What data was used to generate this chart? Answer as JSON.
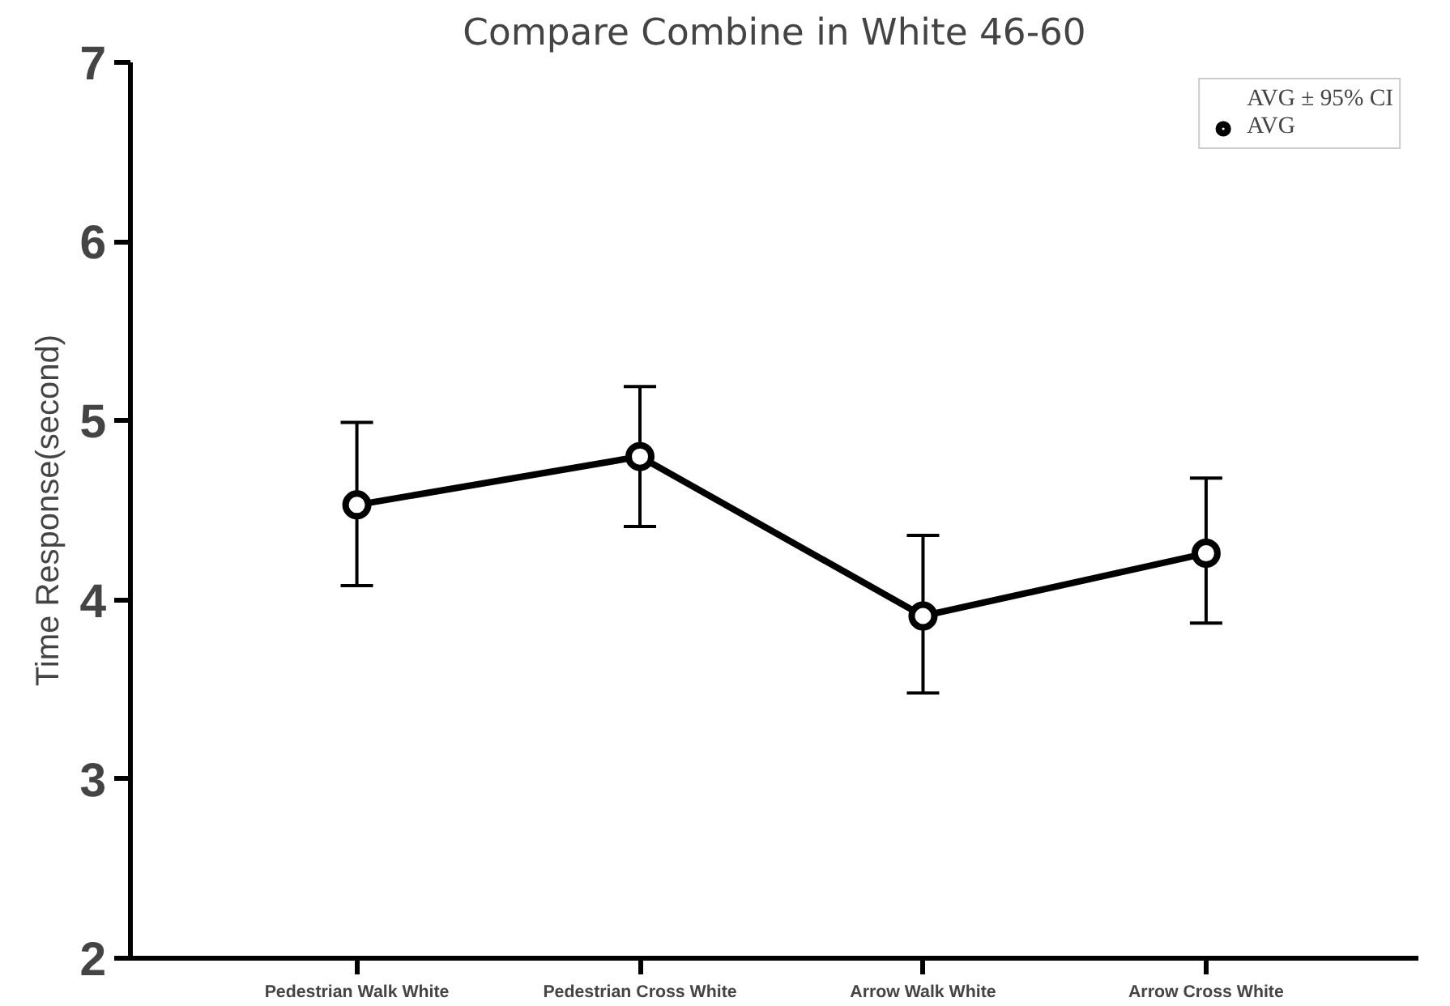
{
  "chart_data": {
    "type": "line",
    "title": "Compare Combine in White 46-60",
    "ylabel": "Time Response(second)",
    "categories": [
      "Pedestrian Walk White",
      "Pedestrian Cross White",
      "Arrow Walk White",
      "Arrow Cross White"
    ],
    "series": [
      {
        "name": "AVG",
        "color": "#000000",
        "values": [
          4.53,
          4.8,
          3.91,
          4.26
        ],
        "errors": [
          [
            4.08,
            4.99
          ],
          [
            4.41,
            5.19
          ],
          [
            3.48,
            4.36
          ],
          [
            3.87,
            4.68
          ]
        ]
      }
    ],
    "annotations": [
      "AVG ± 95% CI"
    ],
    "ylim": [
      2,
      7
    ],
    "yticks": [
      2,
      3,
      4,
      5,
      6,
      7
    ],
    "grid": false,
    "legend": "top right",
    "marker": "circle",
    "line_style": "solid"
  }
}
